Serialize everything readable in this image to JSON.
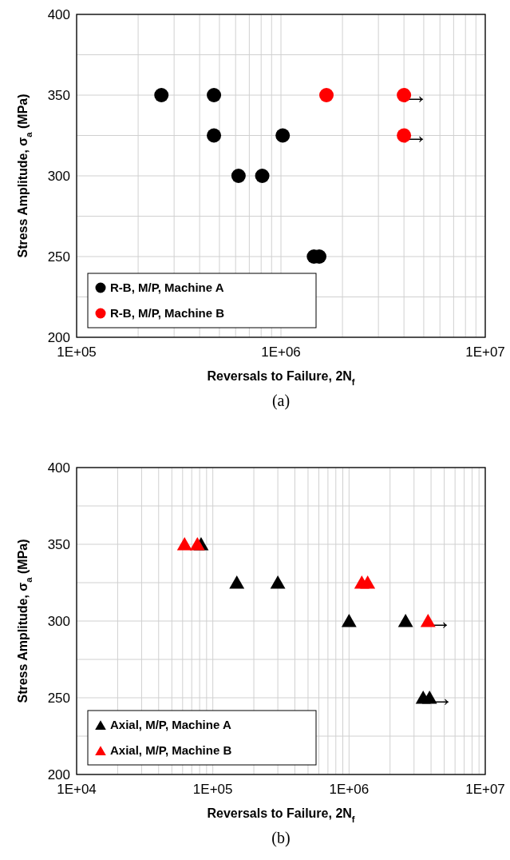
{
  "chart_data": [
    {
      "type": "scatter",
      "xlabel": "Reversals to Failure, 2N$_{f}$",
      "ylabel": "Stress Amplitude, σ$_{a}$ (MPa)",
      "log": "x",
      "grid": true,
      "legend": "bottom left",
      "marker": "circle",
      "xlim": [
        100000,
        10000000
      ],
      "xticks": [
        {
          "value": 100000,
          "label": "1E+05"
        },
        {
          "value": 1000000,
          "label": "1E+06"
        },
        {
          "value": 10000000,
          "label": "1E+07"
        }
      ],
      "ylim": [
        200,
        400
      ],
      "yticks": [
        200,
        250,
        300,
        350,
        400
      ],
      "series": [
        {
          "name": "R-B, M/P, Machine A",
          "color": "#000000",
          "x": [
            260000,
            470000,
            470000,
            620000,
            810000,
            1020000,
            1450000,
            1540000
          ],
          "values": [
            350,
            350,
            325,
            300,
            300,
            325,
            250,
            250
          ]
        },
        {
          "name": "R-B, M/P, Machine B",
          "color": "#ff0000",
          "x": [
            1670000,
            4000000,
            4000000
          ],
          "values": [
            350,
            350,
            325
          ]
        }
      ],
      "annotations": [
        {
          "text": "→",
          "x": 4000000,
          "y": 350
        },
        {
          "text": "→",
          "x": 4000000,
          "y": 325
        },
        "(a)"
      ]
    },
    {
      "type": "scatter",
      "xlabel": "Reversals to Failure, 2N$_{f}$",
      "ylabel": "Stress Amplitude, σ$_{a}$ (MPa)",
      "log": "x",
      "grid": true,
      "legend": "bottom left",
      "marker": "triangle",
      "xlim": [
        10000,
        10000000
      ],
      "xticks": [
        {
          "value": 10000,
          "label": "1E+04"
        },
        {
          "value": 100000,
          "label": "1E+05"
        },
        {
          "value": 1000000,
          "label": "1E+06"
        },
        {
          "value": 10000000,
          "label": "1E+07"
        }
      ],
      "ylim": [
        200,
        400
      ],
      "yticks": [
        200,
        250,
        300,
        350,
        400
      ],
      "series": [
        {
          "name": "Axial, M/P, Machine A",
          "color": "#000000",
          "x": [
            82000,
            150000,
            300000,
            1000000,
            2600000,
            3500000,
            3900000
          ],
          "values": [
            350,
            325,
            325,
            300,
            300,
            250,
            250
          ]
        },
        {
          "name": "Axial, M/P, Machine B",
          "color": "#ff0000",
          "x": [
            62000,
            77000,
            1240000,
            1370000,
            3800000
          ],
          "values": [
            350,
            350,
            325,
            325,
            300
          ]
        }
      ],
      "annotations": [
        {
          "text": "→",
          "x": 3900000,
          "y": 250
        },
        {
          "text": "→",
          "x": 3800000,
          "y": 300
        },
        "(b)"
      ]
    }
  ]
}
